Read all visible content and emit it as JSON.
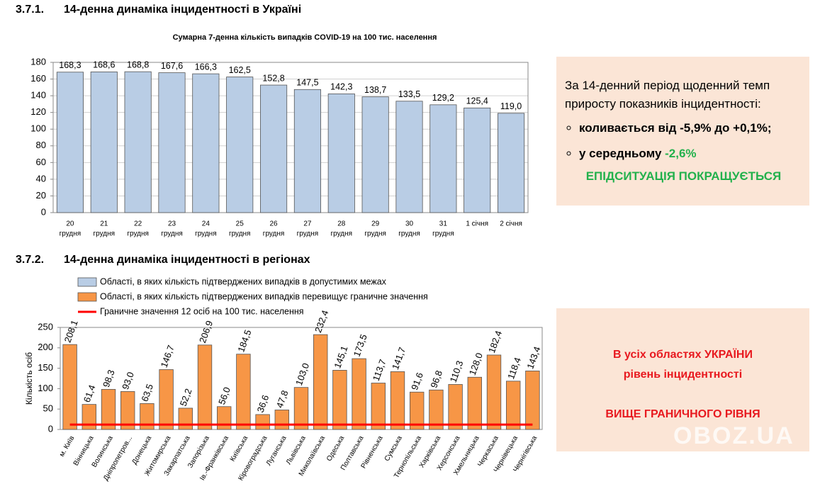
{
  "sections": [
    {
      "number": "3.7.1.",
      "title": "14-денна динаміка інцидентності в Україні"
    },
    {
      "number": "3.7.2.",
      "title": "14-денна динаміка інцидентності в регіонах"
    }
  ],
  "chart_data": [
    {
      "type": "bar",
      "title": "Сумарна 7-денна кількість випадків COVID-19 на 100 тис. населення",
      "categories": [
        [
          "20",
          "грудня"
        ],
        [
          "21",
          "грудня"
        ],
        [
          "22",
          "грудня"
        ],
        [
          "23",
          "грудня"
        ],
        [
          "24",
          "грудня"
        ],
        [
          "25",
          "грудня"
        ],
        [
          "26",
          "грудня"
        ],
        [
          "27",
          "грудня"
        ],
        [
          "28",
          "грудня"
        ],
        [
          "29",
          "грудня"
        ],
        [
          "30",
          "грудня"
        ],
        [
          "31",
          "грудня"
        ],
        [
          "1 січня"
        ],
        [
          "2 січня"
        ]
      ],
      "values": [
        168.3,
        168.6,
        168.8,
        167.6,
        166.3,
        162.5,
        152.8,
        147.5,
        142.3,
        138.7,
        133.5,
        129.2,
        125.4,
        119.0
      ],
      "value_labels": [
        "168,3",
        "168,6",
        "168,8",
        "167,6",
        "166,3",
        "162,5",
        "152,8",
        "147,5",
        "142,3",
        "138,7",
        "133,5",
        "129,2",
        "125,4",
        "119,0"
      ],
      "color": "#b9cde5",
      "ylim": [
        0,
        180
      ],
      "yticks": [
        0,
        20,
        40,
        60,
        80,
        100,
        120,
        140,
        160,
        180
      ],
      "grid": true
    },
    {
      "type": "bar",
      "y_label": "Кількість осіб",
      "categories": [
        "м. Київ",
        "Вінницька",
        "Волинська",
        "Дніпропетров...",
        "Донецька",
        "Житомирська",
        "Закарпатська",
        "Запорізька",
        "Ів.-Франківська",
        "Київська",
        "Кіровоградська",
        "Луганська",
        "Львівська",
        "Миколаївська",
        "Одеська",
        "Полтавська",
        "Рівненська",
        "Сумська",
        "Тернопільська",
        "Харківська",
        "Херсонська",
        "Хмельницька",
        "Черкаська",
        "Чернівецька",
        "Чернігівська"
      ],
      "values": [
        208.1,
        61.4,
        98.3,
        93.0,
        63.5,
        146.7,
        52.2,
        206.9,
        56.0,
        184.5,
        36.6,
        47.8,
        103.0,
        232.4,
        145.1,
        173.5,
        113.7,
        141.7,
        91.6,
        96.8,
        110.3,
        128.0,
        182.4,
        118.4,
        143.4
      ],
      "value_labels": [
        "208,1",
        "61,4",
        "98,3",
        "93,0",
        "63,5",
        "146,7",
        "52,2",
        "206,9",
        "56,0",
        "184,5",
        "36,6",
        "47,8",
        "103,0",
        "232,4",
        "145,1",
        "173,5",
        "113,7",
        "141,7",
        "91,6",
        "96,8",
        "110,3",
        "128,0",
        "182,4",
        "118,4",
        "143,4"
      ],
      "color": "#f79646",
      "ylim": [
        0,
        250
      ],
      "yticks": [
        0,
        50,
        100,
        150,
        200,
        250
      ],
      "grid": false,
      "legend": [
        {
          "name": "Області, в яких кількість підтверджених випадків в допустимих межах",
          "color": "#b9cde5"
        },
        {
          "name": "Області, в яких кількість підтверджених випадків перевищує граничне значення",
          "color": "#f79646"
        }
      ],
      "threshold": {
        "name": "Граничне значення 12 осіб на 100 тис. населення",
        "value": 12,
        "color": "#ff0000"
      }
    }
  ],
  "summary": {
    "intro": "За 14-денний період щоденний темп приросту показників інцидентності:",
    "bullets": [
      {
        "text": "коливається від -5,9% до +0,1%;"
      },
      {
        "text": "у середньому ",
        "highlight": "-2,6%"
      }
    ],
    "conclusion": "ЕПІДСИТУАЦІЯ ПОКРАЩУЄТЬСЯ"
  },
  "regional_summary": {
    "lines": [
      "В усіх областях УКРАЇНИ",
      "рівень інцидентності"
    ],
    "conclusion": "ВИЩЕ ГРАНИЧНОГО РІВНЯ"
  },
  "watermark": "OBOZ.UA"
}
